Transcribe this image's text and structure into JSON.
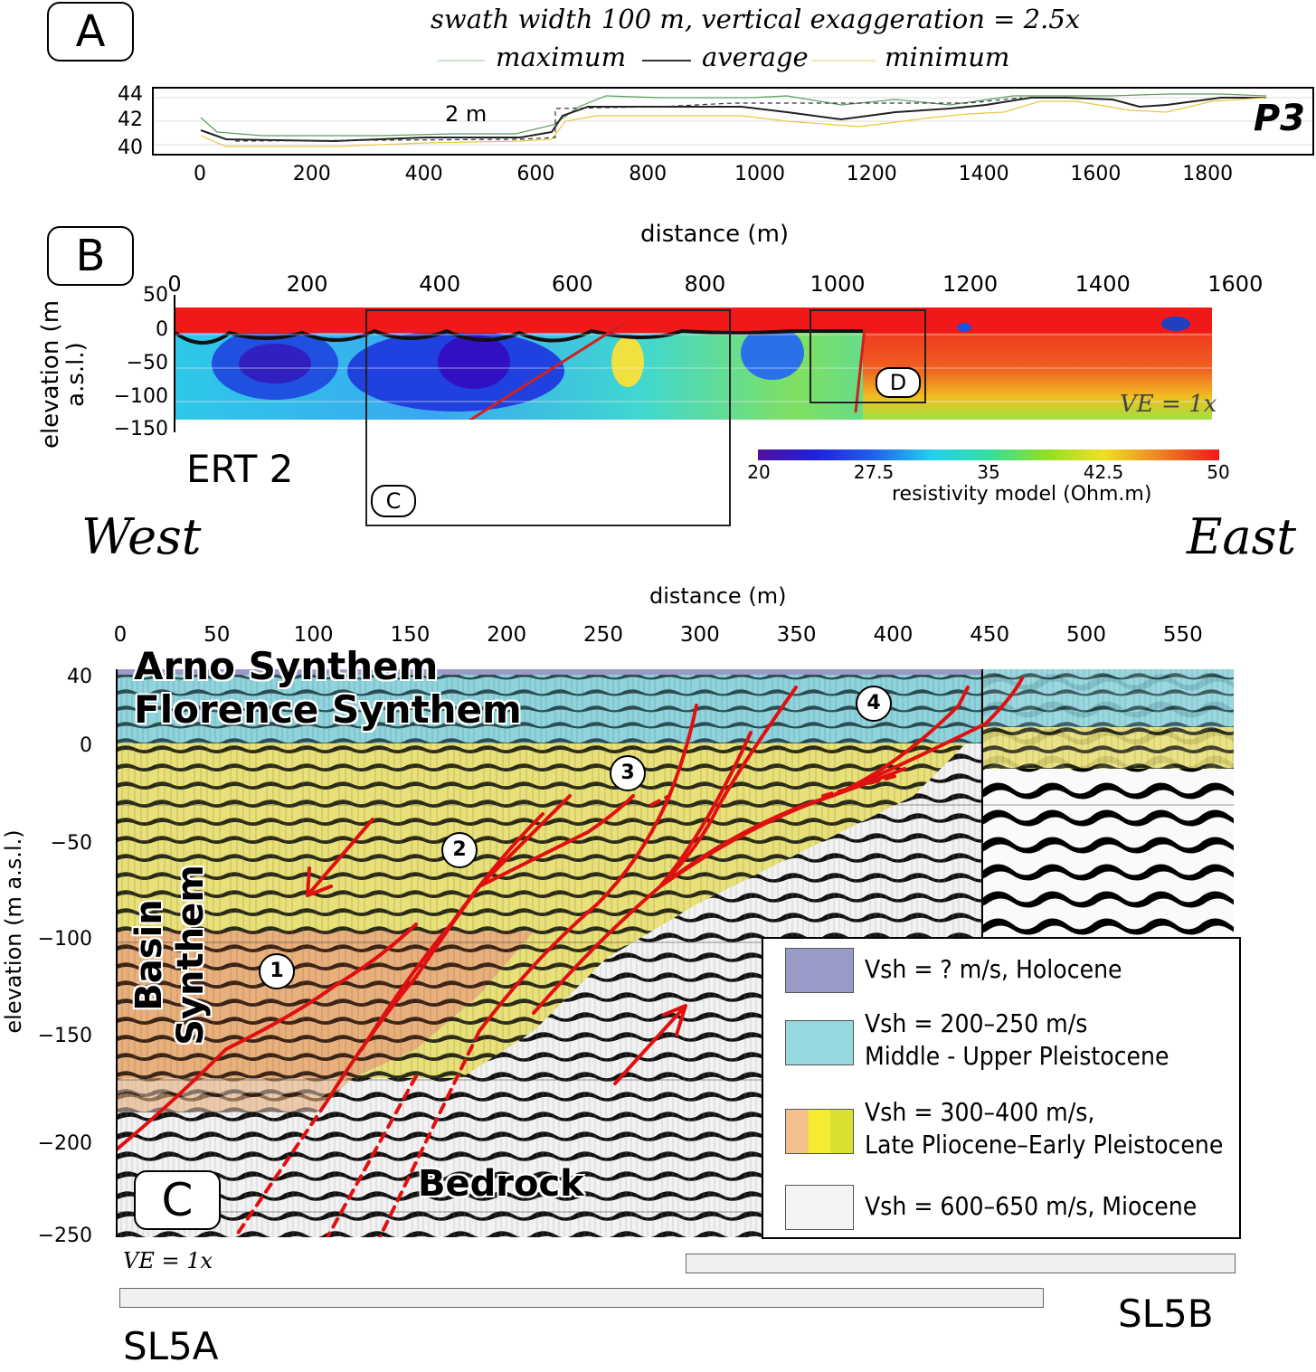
{
  "panel_a": {
    "letter": "A",
    "subtitle": "swath width 100 m, vertical exaggeration = 2.5x",
    "legend": [
      "maximum",
      "average",
      "minimum"
    ],
    "profile_label": "P3",
    "annotation": "2 m",
    "x_ticks": [
      "0",
      "200",
      "400",
      "600",
      "800",
      "1000",
      "1200",
      "1400",
      "1600",
      "1800"
    ],
    "y_ticks": [
      "44",
      "42",
      "40"
    ],
    "colors": {
      "maximum": "#5c9e5c",
      "average": "#222222",
      "minimum": "#e8c840"
    }
  },
  "panel_b": {
    "letter": "B",
    "xlabel": "distance (m)",
    "ylabel": "elevation (m a.s.l.)",
    "x_ticks": [
      "0",
      "200",
      "400",
      "600",
      "800",
      "1000",
      "1200",
      "1400",
      "1600"
    ],
    "y_ticks": [
      "50",
      "0",
      "−50",
      "−100",
      "−150"
    ],
    "name": "ERT 2",
    "ve": "VE = 1x",
    "box_c": "C",
    "box_d": "D",
    "colorbar_ticks": [
      "20",
      "27.5",
      "35",
      "42.5",
      "50"
    ],
    "colorbar_label": "resistivity model (Ohm.m)",
    "west": "West",
    "east": "East"
  },
  "panel_c": {
    "letter": "C",
    "xlabel": "distance (m)",
    "ylabel": "elevation (m a.s.l.)",
    "x_ticks": [
      "0",
      "50",
      "100",
      "150",
      "200",
      "250",
      "300",
      "350",
      "400",
      "450",
      "500",
      "550"
    ],
    "y_ticks": [
      "40",
      "0",
      "−50",
      "−100",
      "−150",
      "−200",
      "−250"
    ],
    "units": {
      "arno": "Arno Synthem",
      "florence": "Florence Synthem",
      "basin": "Basin Synthem",
      "bedrock": "Bedrock"
    },
    "fault_numbers": [
      "1",
      "2",
      "3",
      "4"
    ],
    "ve": "VE = 1x",
    "legend": [
      {
        "line1": "Vsh = ? m/s, Holocene",
        "line2": "",
        "colors": [
          "#9a9ac8"
        ]
      },
      {
        "line1": "Vsh = 200–250 m/s",
        "line2": "Middle - Upper Pleistocene",
        "colors": [
          "#96d8e0"
        ]
      },
      {
        "line1": "Vsh = 300–400 m/s,",
        "line2": "Late Pliocene–Early Pleistocene",
        "colors": [
          "#f4c08e",
          "#f4ec30",
          "#d8e030"
        ]
      },
      {
        "line1": "Vsh = 600–650 m/s, Miocene",
        "line2": "",
        "colors": [
          "#f4f4f4"
        ]
      }
    ],
    "sl5a": "SL5A",
    "sl5b": "SL5B"
  }
}
